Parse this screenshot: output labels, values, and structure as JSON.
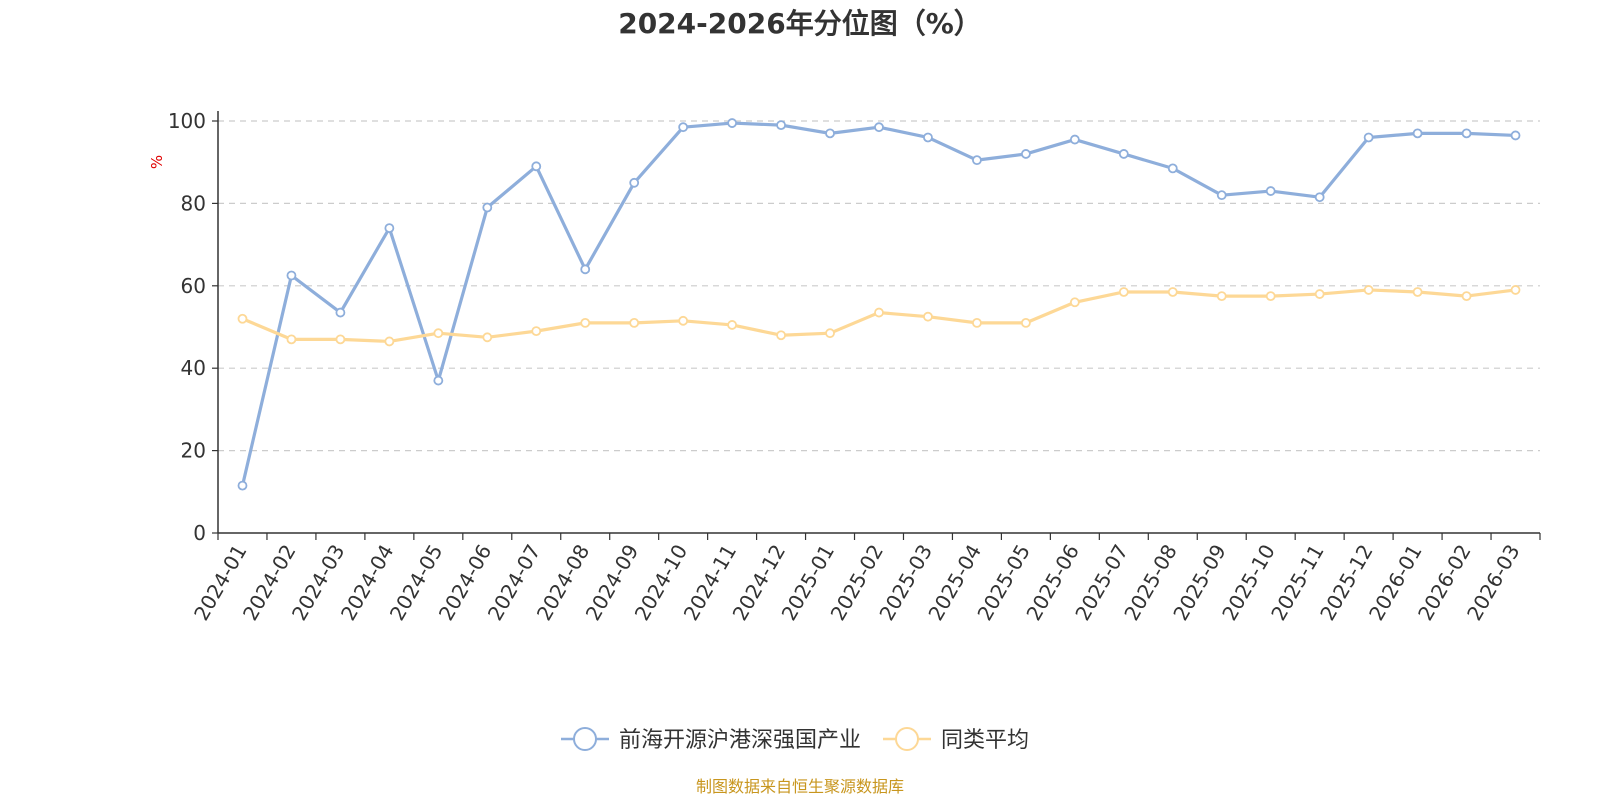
{
  "chart_data": {
    "type": "line",
    "title": "2024-2026年分位图（%）",
    "ylabel": "%",
    "ylim": [
      0,
      100
    ],
    "yticks": [
      0,
      20,
      40,
      60,
      80,
      100
    ],
    "grid": "horizontal-dashed",
    "legend_position": "bottom-center",
    "categories": [
      "2024-01",
      "2024-02",
      "2024-03",
      "2024-04",
      "2024-05",
      "2024-06",
      "2024-07",
      "2024-08",
      "2024-09",
      "2024-10",
      "2024-11",
      "2024-12",
      "2025-01",
      "2025-02",
      "2025-03",
      "2025-04",
      "2025-05",
      "2025-06",
      "2025-07",
      "2025-08",
      "2025-09",
      "2025-10",
      "2025-11",
      "2025-12",
      "2026-01",
      "2026-02",
      "2026-03"
    ],
    "series": [
      {
        "name": "前海开源沪港深强国产业",
        "color": "#8eaedb",
        "values": [
          11.5,
          62.5,
          53.5,
          74.0,
          37.0,
          79.0,
          89.0,
          64.0,
          85.0,
          98.5,
          99.5,
          99.0,
          97.0,
          98.5,
          96.0,
          90.5,
          92.0,
          95.5,
          92.0,
          88.5,
          82.0,
          83.0,
          81.5,
          96.0,
          97.0,
          97.0,
          96.5
        ]
      },
      {
        "name": "同类平均",
        "color": "#fdd896",
        "values": [
          52.0,
          47.0,
          47.0,
          46.5,
          48.5,
          47.5,
          49.0,
          51.0,
          51.0,
          51.5,
          50.5,
          48.0,
          48.5,
          53.5,
          52.5,
          51.0,
          51.0,
          56.0,
          58.5,
          58.5,
          57.5,
          57.5,
          58.0,
          59.0,
          58.5,
          57.5,
          59.0
        ]
      }
    ]
  },
  "source_text": "制图数据来自恒生聚源数据库"
}
